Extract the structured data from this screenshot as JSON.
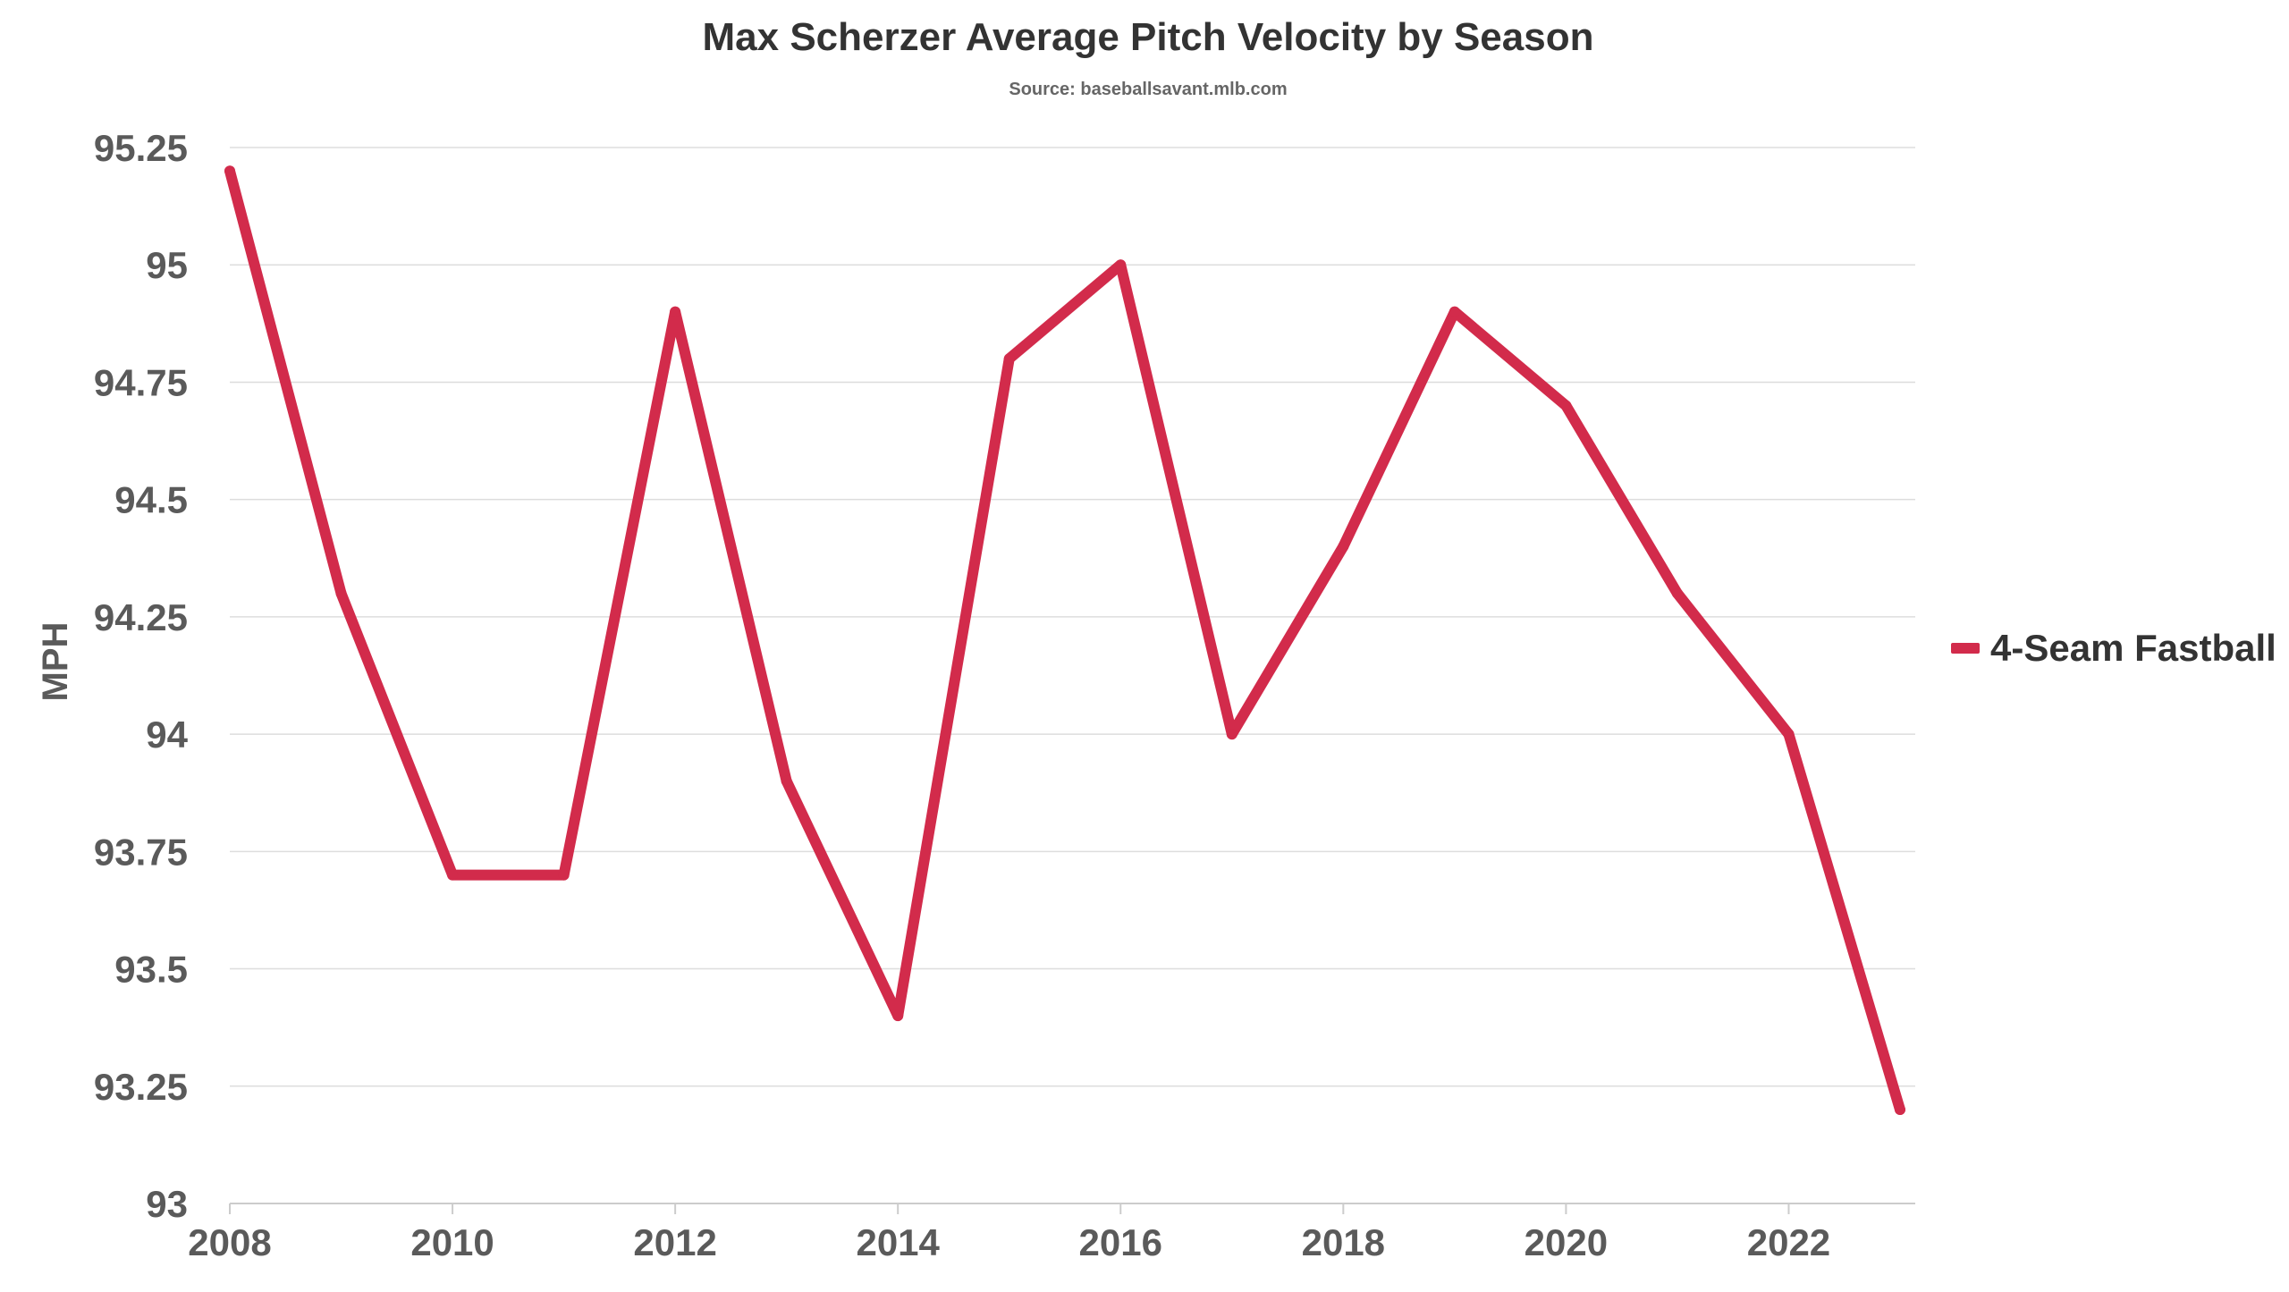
{
  "chart_data": {
    "type": "line",
    "title": "Max Scherzer Average Pitch Velocity by Season",
    "subtitle": "Source: baseballsavant.mlb.com",
    "xlabel": "",
    "ylabel": "MPH",
    "x": [
      2008,
      2009,
      2010,
      2011,
      2012,
      2013,
      2014,
      2015,
      2016,
      2017,
      2018,
      2019,
      2020,
      2021,
      2022,
      2023
    ],
    "x_ticks": [
      "2008",
      "2010",
      "2012",
      "2014",
      "2016",
      "2018",
      "2020",
      "2022"
    ],
    "y_ticks": [
      "93",
      "93.25",
      "93.5",
      "93.75",
      "94",
      "94.25",
      "94.5",
      "94.75",
      "95",
      "95.25"
    ],
    "xlim": [
      2008,
      2023
    ],
    "ylim": [
      93,
      95.25
    ],
    "grid": "horizontal",
    "legend_position": "right",
    "series": [
      {
        "name": "4-Seam Fastball",
        "color": "#d22b4b",
        "values": [
          95.2,
          94.3,
          93.7,
          93.7,
          94.9,
          93.9,
          93.4,
          94.8,
          95.0,
          94.0,
          94.4,
          94.9,
          94.7,
          94.3,
          94.0,
          93.2
        ]
      }
    ],
    "colors": {
      "title": "#333333",
      "subtitle": "#666666",
      "axis_text": "#5a5a5a",
      "grid": "#dddddd",
      "axis_line": "#cccccc"
    }
  }
}
